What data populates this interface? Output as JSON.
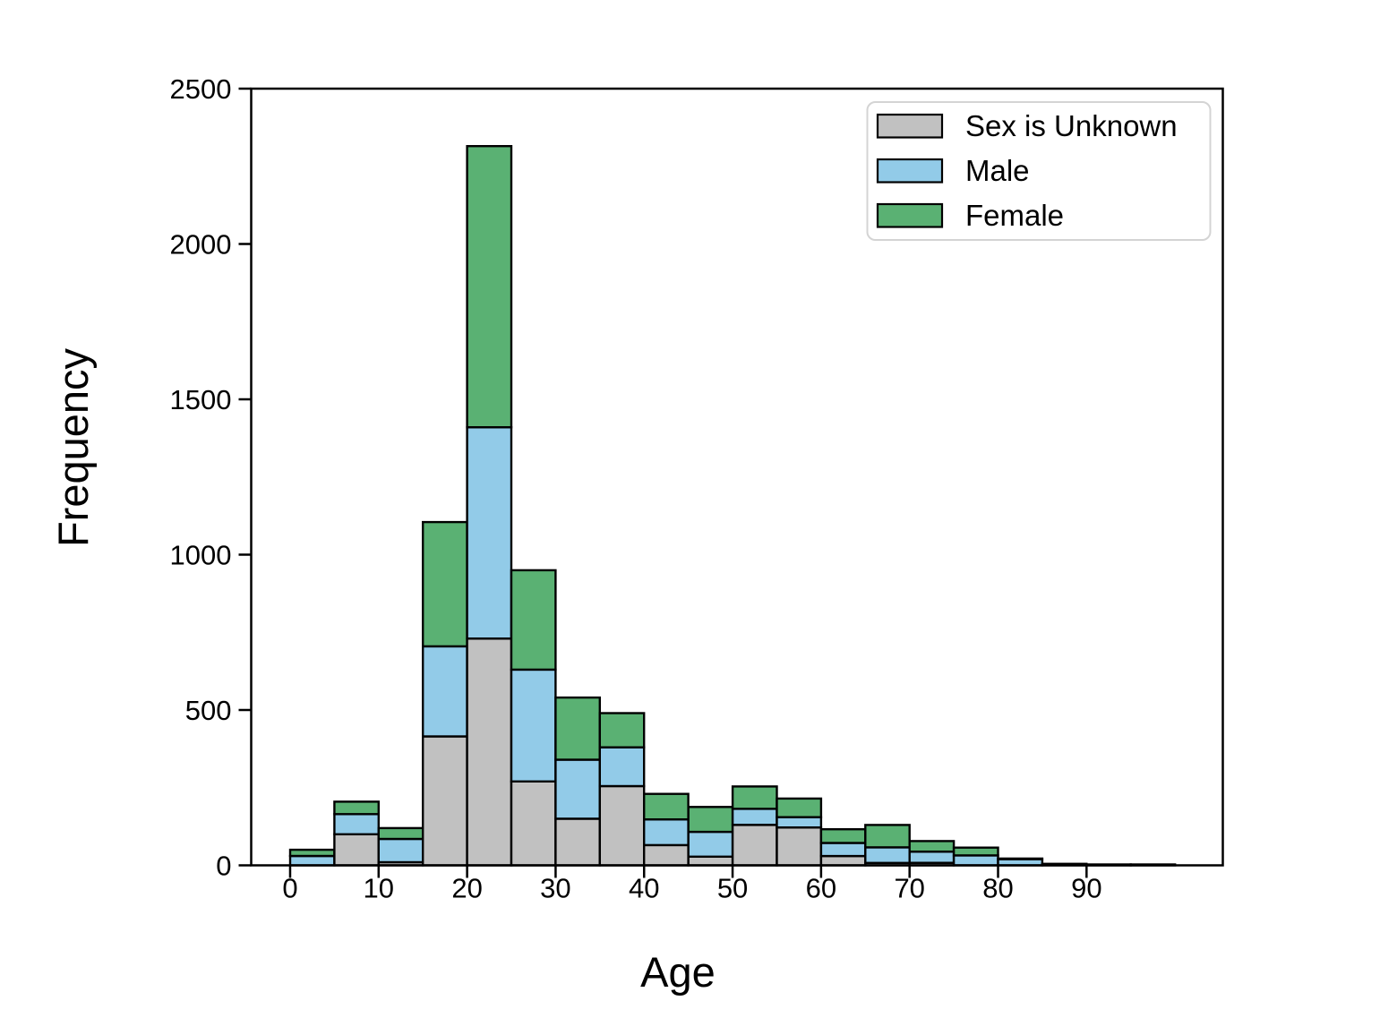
{
  "figure": {
    "background": "#ffffff",
    "title": ""
  },
  "chart_data": {
    "type": "bar",
    "subtype": "stacked-histogram",
    "title": "",
    "xlabel": "Age",
    "ylabel": "Frequency",
    "xlim": [
      -4.4,
      105.4
    ],
    "ylim": [
      0,
      2500
    ],
    "x_ticks": [
      0,
      10,
      20,
      30,
      40,
      50,
      60,
      70,
      80,
      90
    ],
    "y_ticks": [
      0,
      500,
      1000,
      1500,
      2000,
      2500
    ],
    "grid": false,
    "bin_width": 5,
    "bin_edges": [
      0,
      5,
      10,
      15,
      20,
      25,
      30,
      35,
      40,
      45,
      50,
      55,
      60,
      65,
      70,
      75,
      80,
      85,
      90,
      95,
      100
    ],
    "categories": [
      "0-5",
      "5-10",
      "10-15",
      "15-20",
      "20-25",
      "25-30",
      "30-35",
      "35-40",
      "40-45",
      "45-50",
      "50-55",
      "55-60",
      "60-65",
      "65-70",
      "70-75",
      "75-80",
      "80-85",
      "85-90",
      "90-95",
      "95-100"
    ],
    "series": [
      {
        "name": "Sex is Unknown",
        "color": "#c1c1c1",
        "values": [
          0,
          100,
          10,
          415,
          730,
          270,
          150,
          255,
          65,
          28,
          130,
          122,
          30,
          8,
          8,
          0,
          0,
          0,
          0,
          0
        ]
      },
      {
        "name": "Male",
        "color": "#92cbe8",
        "values": [
          30,
          65,
          75,
          290,
          680,
          360,
          190,
          125,
          83,
          80,
          52,
          33,
          42,
          50,
          36,
          32,
          20,
          3,
          2,
          2
        ]
      },
      {
        "name": "Female",
        "color": "#5ab173",
        "values": [
          20,
          40,
          35,
          400,
          905,
          320,
          200,
          110,
          82,
          80,
          72,
          60,
          44,
          72,
          34,
          25,
          2,
          2,
          1,
          1
        ]
      }
    ],
    "totals": [
      50,
      205,
      120,
      1105,
      2315,
      950,
      540,
      490,
      230,
      188,
      254,
      215,
      116,
      130,
      78,
      57,
      22,
      5,
      3,
      3
    ],
    "edge_color": "#000000",
    "legend": {
      "position": "upper right",
      "entries": [
        "Sex is Unknown",
        "Male",
        "Female"
      ]
    }
  }
}
